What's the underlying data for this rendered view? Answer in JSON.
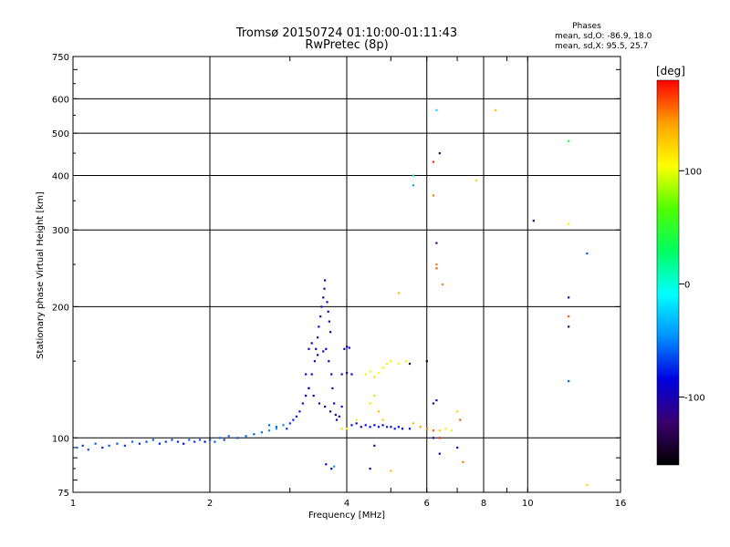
{
  "header": {
    "title": "Tromsø 20150724 01:10:00-01:11:43",
    "subtitle": "RwPretec (8p)",
    "phase_heading": "Phases",
    "phase_o": "mean, sd,O: -86.9, 18.0",
    "phase_x": "mean, sd,X:  95.5, 25.7"
  },
  "chart_data": {
    "type": "scatter",
    "xlabel": "Frequency [MHz]",
    "ylabel": "Stationary phase Virtual Height [km]",
    "xscale": "log",
    "yscale": "log",
    "xlim": [
      1,
      16
    ],
    "ylim": [
      75,
      750
    ],
    "x_ticks": [
      1,
      2,
      4,
      6,
      8,
      10,
      16
    ],
    "y_ticks": [
      75,
      100,
      200,
      300,
      400,
      500,
      600,
      750
    ],
    "x_grid": [
      2,
      4,
      6,
      8,
      10
    ],
    "y_grid": [
      100,
      200,
      300,
      400,
      500,
      600
    ],
    "colorbar": {
      "label": "[deg]",
      "min": -160,
      "max": 180,
      "ticks": [
        -100,
        0,
        100
      ],
      "colors": [
        "#000000",
        "#3a006e",
        "#0000e0",
        "#0090ff",
        "#00ffff",
        "#00ff60",
        "#50ff00",
        "#ffff00",
        "#ffa000",
        "#ff0000"
      ]
    },
    "series": [
      {
        "points": [
          [
            1.02,
            95,
            -60
          ],
          [
            1.05,
            96,
            -70
          ],
          [
            1.08,
            94,
            -65
          ],
          [
            1.12,
            97,
            -60
          ],
          [
            1.16,
            95,
            -75
          ],
          [
            1.2,
            96,
            -65
          ],
          [
            1.25,
            97,
            -62
          ],
          [
            1.3,
            96,
            -70
          ],
          [
            1.35,
            98,
            -60
          ],
          [
            1.4,
            97,
            -75
          ],
          [
            1.45,
            98,
            -65
          ],
          [
            1.5,
            99,
            -62
          ],
          [
            1.55,
            97,
            -80
          ],
          [
            1.6,
            98,
            -70
          ],
          [
            1.65,
            99,
            -65
          ],
          [
            1.7,
            98,
            -75
          ],
          [
            1.75,
            97,
            -85
          ],
          [
            1.8,
            99,
            -60
          ],
          [
            1.85,
            98,
            -70
          ],
          [
            1.9,
            99,
            -62
          ],
          [
            1.95,
            98,
            -80
          ],
          [
            2.0,
            99,
            -65
          ],
          [
            2.05,
            98,
            -60
          ],
          [
            2.1,
            100,
            -58
          ],
          [
            2.15,
            99,
            -70
          ],
          [
            2.2,
            101,
            -55
          ],
          [
            2.3,
            100,
            -62
          ],
          [
            2.4,
            101,
            -58
          ],
          [
            2.5,
            102,
            -60
          ],
          [
            2.6,
            103,
            -55
          ],
          [
            2.7,
            104,
            -50
          ],
          [
            2.8,
            106,
            -60
          ],
          [
            2.9,
            107,
            -50
          ],
          [
            2.95,
            105,
            -70
          ],
          [
            3.0,
            108,
            -70
          ],
          [
            3.05,
            110,
            -80
          ],
          [
            3.1,
            112,
            -85
          ],
          [
            3.15,
            115,
            -80
          ],
          [
            3.2,
            120,
            -90
          ],
          [
            3.25,
            125,
            -85
          ],
          [
            3.3,
            130,
            -90
          ],
          [
            3.35,
            140,
            -95
          ],
          [
            3.4,
            150,
            -90
          ],
          [
            3.42,
            160,
            -95
          ],
          [
            3.45,
            170,
            -100
          ],
          [
            3.47,
            180,
            -95
          ],
          [
            3.5,
            190,
            -100
          ],
          [
            3.52,
            200,
            -95
          ],
          [
            3.55,
            210,
            -100
          ],
          [
            3.57,
            220,
            -105
          ],
          [
            3.58,
            230,
            -100
          ],
          [
            3.62,
            205,
            -95
          ],
          [
            3.64,
            195,
            -100
          ],
          [
            3.66,
            185,
            -90
          ],
          [
            3.68,
            175,
            -95
          ],
          [
            3.6,
            160,
            -90
          ],
          [
            3.65,
            150,
            -95
          ],
          [
            3.7,
            140,
            -90
          ],
          [
            3.72,
            130,
            -95
          ],
          [
            3.75,
            120,
            -90
          ],
          [
            3.8,
            110,
            -95
          ],
          [
            3.85,
            112,
            -85
          ],
          [
            3.9,
            118,
            -80
          ],
          [
            3.95,
            160,
            -90
          ],
          [
            4.0,
            162,
            -95
          ],
          [
            4.05,
            161,
            -90
          ],
          [
            3.9,
            140,
            -100
          ],
          [
            4.0,
            141,
            -95
          ],
          [
            4.1,
            140,
            -90
          ],
          [
            3.3,
            160,
            -95
          ],
          [
            3.35,
            165,
            -100
          ],
          [
            3.45,
            155,
            -90
          ],
          [
            3.55,
            158,
            -95
          ],
          [
            3.25,
            140,
            -95
          ],
          [
            3.3,
            130,
            -100
          ],
          [
            3.38,
            125,
            -95
          ],
          [
            3.48,
            120,
            -105
          ],
          [
            3.58,
            118,
            -95
          ],
          [
            3.68,
            115,
            -100
          ],
          [
            3.78,
            113,
            -95
          ],
          [
            4.1,
            107,
            -80
          ],
          [
            4.2,
            108,
            -85
          ],
          [
            4.3,
            106,
            -90
          ],
          [
            4.4,
            107,
            -80
          ],
          [
            4.5,
            106,
            -85
          ],
          [
            4.6,
            107,
            -90
          ],
          [
            4.7,
            106,
            -80
          ],
          [
            4.8,
            107,
            -85
          ],
          [
            4.9,
            106,
            -75
          ],
          [
            5.0,
            106,
            -90
          ],
          [
            5.1,
            105,
            -80
          ],
          [
            5.2,
            106,
            -85
          ],
          [
            5.3,
            105,
            -90
          ],
          [
            5.5,
            105,
            -85
          ],
          [
            4.4,
            140,
            110
          ],
          [
            4.5,
            142,
            100
          ],
          [
            4.6,
            138,
            115
          ],
          [
            4.7,
            141,
            105
          ],
          [
            4.8,
            145,
            110
          ],
          [
            4.9,
            148,
            100
          ],
          [
            5.0,
            150,
            115
          ],
          [
            4.6,
            125,
            120
          ],
          [
            4.7,
            115,
            130
          ],
          [
            4.8,
            110,
            125
          ],
          [
            4.5,
            120,
            115
          ],
          [
            4.2,
            110,
            100
          ],
          [
            4.0,
            105,
            110
          ],
          [
            3.9,
            105,
            120
          ],
          [
            5.2,
            148,
            100
          ],
          [
            5.4,
            150,
            110
          ],
          [
            5.6,
            108,
            130
          ],
          [
            5.8,
            106,
            140
          ],
          [
            6.0,
            105,
            150
          ],
          [
            6.2,
            104,
            160
          ],
          [
            6.4,
            104,
            120
          ],
          [
            6.6,
            105,
            110
          ],
          [
            6.8,
            104,
            100
          ],
          [
            3.7,
            85,
            -90
          ],
          [
            3.6,
            87,
            -95
          ],
          [
            3.75,
            86,
            -40
          ],
          [
            4.5,
            85,
            -100
          ],
          [
            4.6,
            96,
            -100
          ],
          [
            5.0,
            84,
            130
          ],
          [
            5.5,
            148,
            -140
          ],
          [
            6.2,
            100,
            -100
          ],
          [
            6.4,
            92,
            -100
          ],
          [
            7.0,
            95,
            -100
          ],
          [
            7.2,
            88,
            150
          ],
          [
            5.2,
            215,
            130
          ],
          [
            5.6,
            380,
            -40
          ],
          [
            5.6,
            400,
            -20
          ],
          [
            6.2,
            360,
            150
          ],
          [
            6.2,
            430,
            170
          ],
          [
            6.4,
            450,
            -130
          ],
          [
            6.3,
            565,
            -20
          ],
          [
            6.3,
            280,
            -120
          ],
          [
            6.3,
            250,
            150
          ],
          [
            6.3,
            245,
            160
          ],
          [
            6.5,
            225,
            150
          ],
          [
            7.7,
            390,
            120
          ],
          [
            8.5,
            565,
            130
          ],
          [
            10.3,
            315,
            -110
          ],
          [
            12.3,
            210,
            -100
          ],
          [
            12.3,
            190,
            160
          ],
          [
            12.3,
            180,
            -130
          ],
          [
            12.3,
            135,
            -60
          ],
          [
            12.3,
            480,
            40
          ],
          [
            12.3,
            310,
            110
          ],
          [
            13.5,
            78,
            120
          ],
          [
            13.5,
            265,
            -60
          ],
          [
            6.0,
            150,
            -150
          ],
          [
            6.2,
            120,
            -110
          ],
          [
            6.3,
            122,
            -100
          ],
          [
            6.4,
            100,
            170
          ],
          [
            7.0,
            115,
            120
          ],
          [
            7.1,
            110,
            160
          ],
          [
            2.8,
            105,
            -40
          ],
          [
            2.7,
            107,
            -60
          ]
        ]
      }
    ]
  }
}
